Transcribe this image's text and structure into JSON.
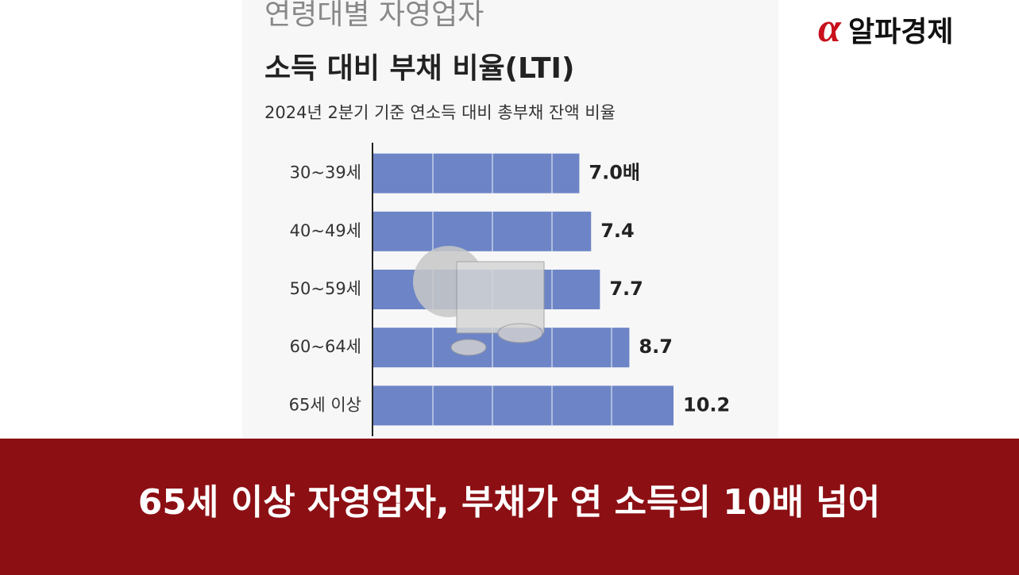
{
  "logo": {
    "symbol": "α",
    "text": "알파경제"
  },
  "caption": "65세 이상 자영업자, 부채가 연 소득의 10배 넘어",
  "chart_data": {
    "type": "bar",
    "orientation": "horizontal",
    "title": "연령대별 자영업자",
    "subtitle": "소득 대비 부채 비율(LTI)",
    "note": "2024년 2분기 기준 연소득 대비 총부채 잔액 비율",
    "categories": [
      "30~39세",
      "40~49세",
      "50~59세",
      "60~64세",
      "65세 이상"
    ],
    "values": [
      7.0,
      7.4,
      7.7,
      8.7,
      10.2
    ],
    "value_labels": [
      "7.0배",
      "7.4",
      "7.7",
      "8.7",
      "10.2"
    ],
    "color": "#6d85c6"
  }
}
